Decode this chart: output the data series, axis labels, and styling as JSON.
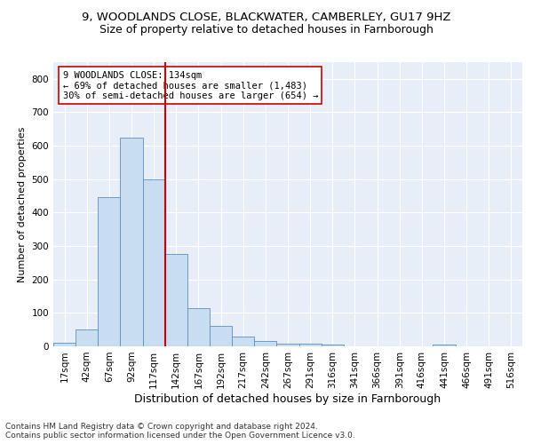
{
  "title1": "9, WOODLANDS CLOSE, BLACKWATER, CAMBERLEY, GU17 9HZ",
  "title2": "Size of property relative to detached houses in Farnborough",
  "xlabel": "Distribution of detached houses by size in Farnborough",
  "ylabel": "Number of detached properties",
  "bar_labels": [
    "17sqm",
    "42sqm",
    "67sqm",
    "92sqm",
    "117sqm",
    "142sqm",
    "167sqm",
    "192sqm",
    "217sqm",
    "242sqm",
    "267sqm",
    "291sqm",
    "316sqm",
    "341sqm",
    "366sqm",
    "391sqm",
    "416sqm",
    "441sqm",
    "466sqm",
    "491sqm",
    "516sqm"
  ],
  "bar_values": [
    10,
    50,
    445,
    625,
    500,
    275,
    115,
    60,
    30,
    15,
    8,
    8,
    6,
    0,
    0,
    0,
    0,
    5,
    0,
    0,
    0
  ],
  "bar_color": "#c9ddf0",
  "bar_edge_color": "#5a8fc3",
  "vline_x": 4.5,
  "vline_color": "#cc0000",
  "annotation_line1": "9 WOODLANDS CLOSE: 134sqm",
  "annotation_line2": "← 69% of detached houses are smaller (1,483)",
  "annotation_line3": "30% of semi-detached houses are larger (654) →",
  "annotation_box_color": "white",
  "annotation_box_edge_color": "#cc0000",
  "ylim": [
    0,
    850
  ],
  "yticks": [
    0,
    100,
    200,
    300,
    400,
    500,
    600,
    700,
    800
  ],
  "footer1": "Contains HM Land Registry data © Crown copyright and database right 2024.",
  "footer2": "Contains public sector information licensed under the Open Government Licence v3.0.",
  "bg_color": "#e8eef8",
  "grid_color": "#ffffff",
  "title1_fontsize": 9.5,
  "title2_fontsize": 9,
  "xlabel_fontsize": 9,
  "ylabel_fontsize": 8,
  "tick_fontsize": 7.5,
  "annotation_fontsize": 7.5,
  "footer_fontsize": 6.5
}
